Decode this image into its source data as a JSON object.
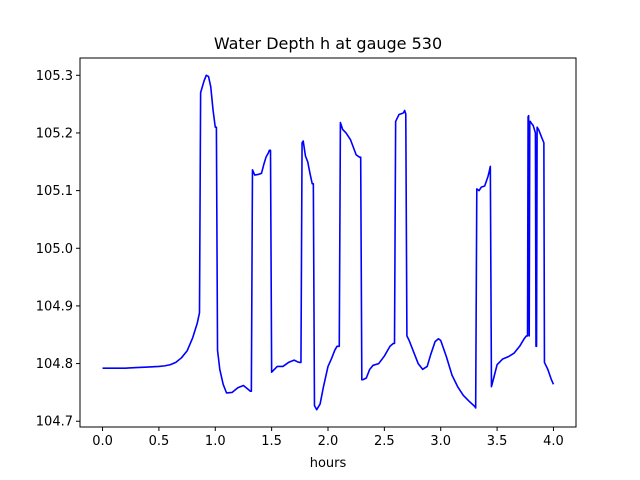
{
  "chart_data": {
    "type": "line",
    "title": "Water Depth h at gauge 530",
    "xlabel": "hours",
    "ylabel": "",
    "xlim": [
      -0.2,
      4.2
    ],
    "ylim": [
      104.69,
      105.33
    ],
    "xticks": [
      "0.0",
      "0.5",
      "1.0",
      "1.5",
      "2.0",
      "2.5",
      "3.0",
      "3.5",
      "4.0"
    ],
    "yticks": [
      "104.7",
      "104.8",
      "104.9",
      "105.0",
      "105.1",
      "105.2",
      "105.3"
    ],
    "grid": false,
    "series_color": "#0000ff",
    "series": [
      {
        "x": [
          0.0,
          0.1,
          0.2,
          0.3,
          0.4,
          0.5,
          0.55,
          0.6,
          0.65,
          0.7,
          0.75,
          0.8,
          0.84,
          0.86,
          0.87,
          0.9,
          0.92,
          0.94,
          0.96,
          0.98,
          1.0,
          1.01,
          1.02,
          1.04,
          1.07,
          1.1,
          1.15,
          1.2,
          1.25,
          1.3,
          1.31,
          1.32,
          1.33,
          1.35,
          1.38,
          1.41,
          1.43,
          1.45,
          1.47,
          1.48,
          1.49,
          1.5,
          1.55,
          1.6,
          1.65,
          1.7,
          1.73,
          1.75,
          1.76,
          1.77,
          1.78,
          1.8,
          1.82,
          1.84,
          1.86,
          1.87,
          1.88,
          1.9,
          1.93,
          1.96,
          2.0,
          2.03,
          2.06,
          2.08,
          2.09,
          2.1,
          2.11,
          2.13,
          2.16,
          2.2,
          2.25,
          2.28,
          2.29,
          2.3,
          2.31,
          2.34,
          2.37,
          2.4,
          2.45,
          2.5,
          2.55,
          2.58,
          2.59,
          2.6,
          2.63,
          2.66,
          2.67,
          2.68,
          2.69,
          2.7,
          2.72,
          2.76,
          2.8,
          2.84,
          2.88,
          2.91,
          2.95,
          2.98,
          3.0,
          3.05,
          3.1,
          3.15,
          3.2,
          3.25,
          3.3,
          3.31,
          3.32,
          3.34,
          3.36,
          3.39,
          3.42,
          3.43,
          3.44,
          3.45,
          3.47,
          3.5,
          3.55,
          3.6,
          3.65,
          3.7,
          3.74,
          3.76,
          3.77,
          3.775,
          3.78,
          3.785,
          3.79,
          3.795,
          3.8,
          3.82,
          3.84,
          3.845,
          3.85,
          3.855,
          3.87,
          3.9,
          3.915,
          3.92,
          3.95,
          3.98,
          4.0
        ],
        "y": [
          104.792,
          104.792,
          104.792,
          104.793,
          104.794,
          104.795,
          104.796,
          104.798,
          104.802,
          104.81,
          104.822,
          104.845,
          104.87,
          104.888,
          105.27,
          105.29,
          105.3,
          105.298,
          105.28,
          105.24,
          105.21,
          105.21,
          104.823,
          104.79,
          104.764,
          104.749,
          104.75,
          104.758,
          104.762,
          104.754,
          104.752,
          104.752,
          105.136,
          105.127,
          105.128,
          105.13,
          105.145,
          105.158,
          105.165,
          105.17,
          105.17,
          104.785,
          104.795,
          104.795,
          104.802,
          104.806,
          104.803,
          104.802,
          104.802,
          105.183,
          105.186,
          105.16,
          105.15,
          105.13,
          105.112,
          105.112,
          104.727,
          104.72,
          104.73,
          104.76,
          104.795,
          104.808,
          104.823,
          104.83,
          104.83,
          104.83,
          105.218,
          105.206,
          105.2,
          105.188,
          105.162,
          105.158,
          105.158,
          104.772,
          104.772,
          104.775,
          104.79,
          104.797,
          104.8,
          104.813,
          104.83,
          104.835,
          104.835,
          105.22,
          105.232,
          105.234,
          105.235,
          105.239,
          105.233,
          104.848,
          104.84,
          104.82,
          104.8,
          104.79,
          104.795,
          104.815,
          104.838,
          104.843,
          104.84,
          104.812,
          104.78,
          104.76,
          104.745,
          104.735,
          104.726,
          104.723,
          105.103,
          105.1,
          105.106,
          105.108,
          105.125,
          105.133,
          105.142,
          104.76,
          104.775,
          104.798,
          104.808,
          104.812,
          104.818,
          104.83,
          104.843,
          104.848,
          104.848,
          105.228,
          105.23,
          104.848,
          105.22,
          105.22,
          105.218,
          105.213,
          105.2,
          104.83,
          104.83,
          105.21,
          105.205,
          105.19,
          105.183,
          104.802,
          104.79,
          104.773,
          104.764
        ]
      }
    ]
  }
}
